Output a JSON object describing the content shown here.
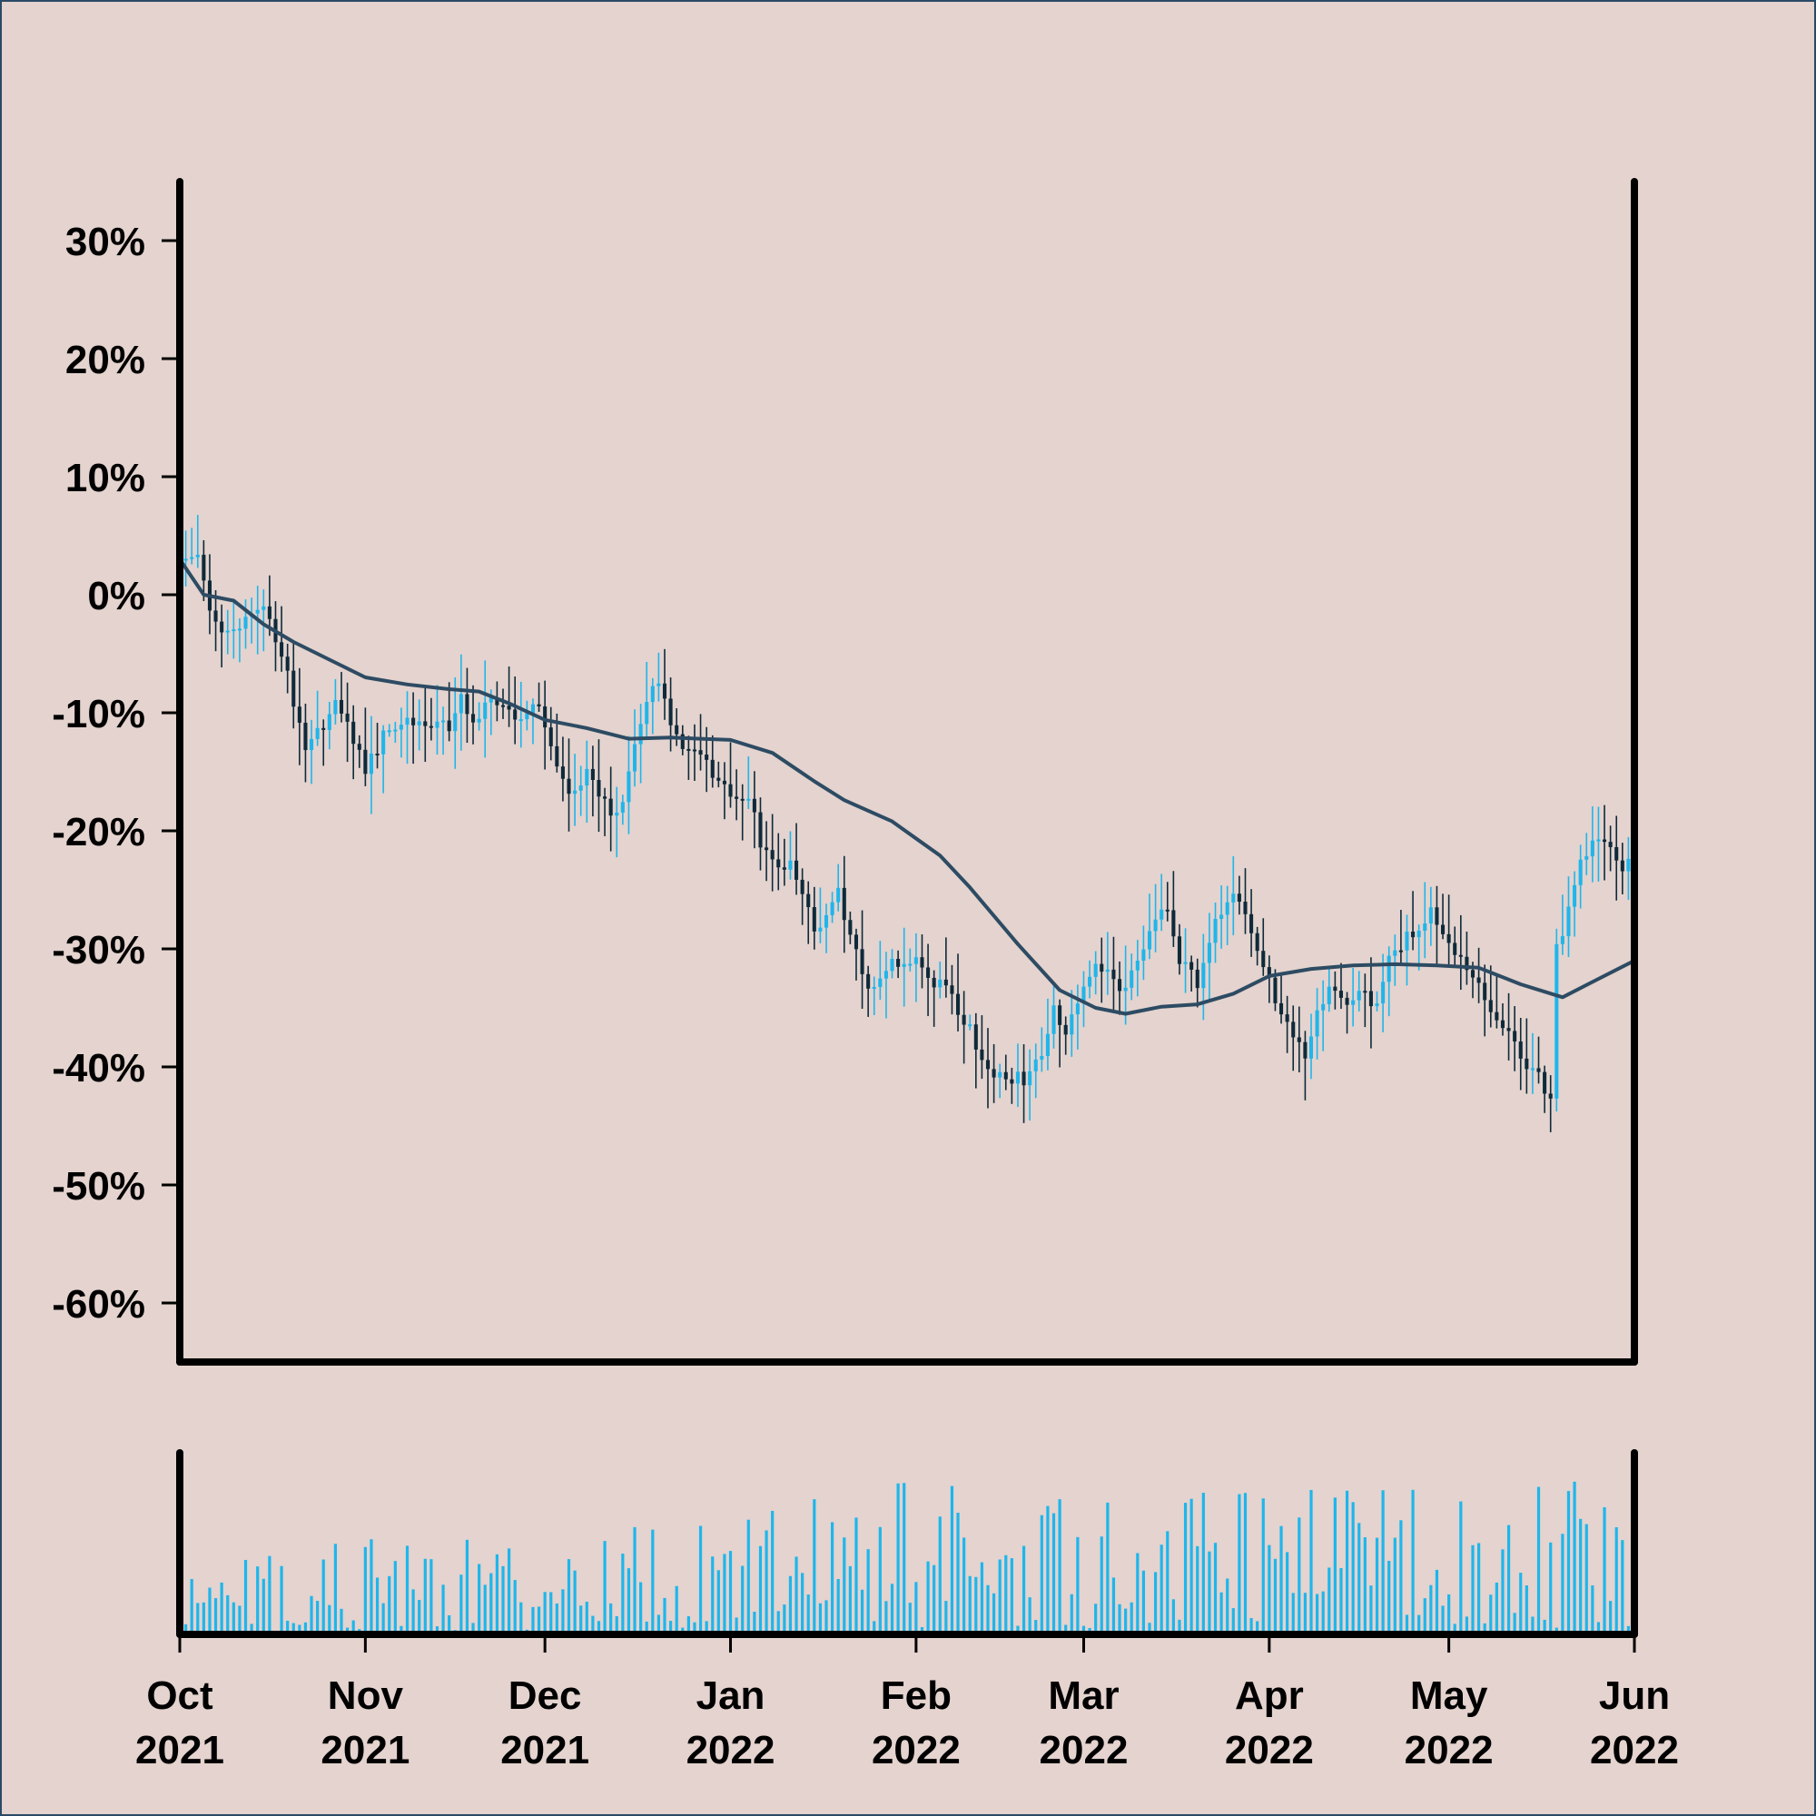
{
  "chart_data": {
    "type": "candlestick",
    "title": "",
    "xlabel": "",
    "ylabel": "",
    "y_unit": "%",
    "date_range": [
      "2021-10-01",
      "2022-06-01"
    ],
    "ylim": [
      -65,
      35
    ],
    "y_ticks": [
      {
        "value": 30,
        "label": "30%"
      },
      {
        "value": 20,
        "label": "20%"
      },
      {
        "value": 10,
        "label": "10%"
      },
      {
        "value": 0,
        "label": "0%"
      },
      {
        "value": -10,
        "label": "-10%"
      },
      {
        "value": -20,
        "label": "-20%"
      },
      {
        "value": -30,
        "label": "-30%"
      },
      {
        "value": -40,
        "label": "-40%"
      },
      {
        "value": -50,
        "label": "-50%"
      },
      {
        "value": -60,
        "label": "-60%"
      }
    ],
    "x_ticks": [
      {
        "date": "2021-10-01",
        "month": "Oct",
        "year": "2021"
      },
      {
        "date": "2021-11-01",
        "month": "Nov",
        "year": "2021"
      },
      {
        "date": "2021-12-01",
        "month": "Dec",
        "year": "2021"
      },
      {
        "date": "2022-01-01",
        "month": "Jan",
        "year": "2022"
      },
      {
        "date": "2022-02-01",
        "month": "Feb",
        "year": "2022"
      },
      {
        "date": "2022-03-01",
        "month": "Mar",
        "year": "2022"
      },
      {
        "date": "2022-04-01",
        "month": "Apr",
        "year": "2022"
      },
      {
        "date": "2022-05-01",
        "month": "May",
        "year": "2022"
      },
      {
        "date": "2022-06-01",
        "month": "Jun",
        "year": "2022"
      }
    ],
    "close_path": [
      [
        "2021-10-01",
        3
      ],
      [
        "2021-10-04",
        3
      ],
      [
        "2021-10-06",
        -1
      ],
      [
        "2021-10-08",
        -3
      ],
      [
        "2021-10-11",
        -3
      ],
      [
        "2021-10-13",
        -1
      ],
      [
        "2021-10-15",
        -1
      ],
      [
        "2021-10-18",
        -5
      ],
      [
        "2021-10-20",
        -9
      ],
      [
        "2021-10-22",
        -13
      ],
      [
        "2021-10-25",
        -11
      ],
      [
        "2021-10-27",
        -9
      ],
      [
        "2021-10-29",
        -11
      ],
      [
        "2021-11-01",
        -15
      ],
      [
        "2021-11-03",
        -13
      ],
      [
        "2021-11-05",
        -11
      ],
      [
        "2021-11-08",
        -11
      ],
      [
        "2021-11-10",
        -11
      ],
      [
        "2021-11-12",
        -11
      ],
      [
        "2021-11-15",
        -11
      ],
      [
        "2021-11-17",
        -9
      ],
      [
        "2021-11-19",
        -11
      ],
      [
        "2021-11-22",
        -9
      ],
      [
        "2021-11-24",
        -9
      ],
      [
        "2021-11-26",
        -11
      ],
      [
        "2021-11-29",
        -9
      ],
      [
        "2021-12-01",
        -11
      ],
      [
        "2021-12-03",
        -15
      ],
      [
        "2021-12-06",
        -17
      ],
      [
        "2021-12-08",
        -15
      ],
      [
        "2021-12-10",
        -17
      ],
      [
        "2021-12-13",
        -19
      ],
      [
        "2021-12-15",
        -15
      ],
      [
        "2021-12-17",
        -11
      ],
      [
        "2021-12-20",
        -7
      ],
      [
        "2021-12-22",
        -11
      ],
      [
        "2021-12-24",
        -13
      ],
      [
        "2021-12-27",
        -13
      ],
      [
        "2021-12-29",
        -15
      ],
      [
        "2022-01-01",
        -17
      ],
      [
        "2022-01-04",
        -17
      ],
      [
        "2022-01-06",
        -21
      ],
      [
        "2022-01-08",
        -23
      ],
      [
        "2022-01-11",
        -23
      ],
      [
        "2022-01-13",
        -25
      ],
      [
        "2022-01-15",
        -29
      ],
      [
        "2022-01-17",
        -27
      ],
      [
        "2022-01-19",
        -25
      ],
      [
        "2022-01-21",
        -29
      ],
      [
        "2022-01-24",
        -33
      ],
      [
        "2022-01-26",
        -33
      ],
      [
        "2022-01-28",
        -31
      ],
      [
        "2022-02-01",
        -31
      ],
      [
        "2022-02-03",
        -33
      ],
      [
        "2022-02-05",
        -33
      ],
      [
        "2022-02-08",
        -35
      ],
      [
        "2022-02-10",
        -37
      ],
      [
        "2022-02-12",
        -39
      ],
      [
        "2022-02-15",
        -41
      ],
      [
        "2022-02-17",
        -41
      ],
      [
        "2022-02-19",
        -41
      ],
      [
        "2022-02-22",
        -39
      ],
      [
        "2022-02-24",
        -35
      ],
      [
        "2022-02-26",
        -37
      ],
      [
        "2022-03-01",
        -33
      ],
      [
        "2022-03-03",
        -31
      ],
      [
        "2022-03-06",
        -33
      ],
      [
        "2022-03-08",
        -33
      ],
      [
        "2022-03-10",
        -31
      ],
      [
        "2022-03-13",
        -27
      ],
      [
        "2022-03-15",
        -27
      ],
      [
        "2022-03-17",
        -31
      ],
      [
        "2022-03-20",
        -33
      ],
      [
        "2022-03-22",
        -29
      ],
      [
        "2022-03-24",
        -27
      ],
      [
        "2022-03-26",
        -25
      ],
      [
        "2022-03-28",
        -27
      ],
      [
        "2022-03-31",
        -31
      ],
      [
        "2022-04-02",
        -35
      ],
      [
        "2022-04-05",
        -37
      ],
      [
        "2022-04-07",
        -39
      ],
      [
        "2022-04-09",
        -35
      ],
      [
        "2022-04-12",
        -33
      ],
      [
        "2022-04-14",
        -35
      ],
      [
        "2022-04-16",
        -33
      ],
      [
        "2022-04-19",
        -35
      ],
      [
        "2022-04-21",
        -31
      ],
      [
        "2022-04-24",
        -29
      ],
      [
        "2022-04-26",
        -29
      ],
      [
        "2022-04-28",
        -27
      ],
      [
        "2022-05-01",
        -29
      ],
      [
        "2022-05-03",
        -31
      ],
      [
        "2022-05-06",
        -33
      ],
      [
        "2022-05-08",
        -35
      ],
      [
        "2022-05-11",
        -37
      ],
      [
        "2022-05-13",
        -39
      ],
      [
        "2022-05-16",
        -41
      ],
      [
        "2022-05-18",
        -43
      ],
      [
        "2022-05-19",
        -30
      ],
      [
        "2022-05-21",
        -27
      ],
      [
        "2022-05-23",
        -23
      ],
      [
        "2022-05-25",
        -21
      ],
      [
        "2022-05-27",
        -21
      ],
      [
        "2022-05-30",
        -23
      ],
      [
        "2022-06-01",
        -21
      ]
    ],
    "moving_average": [
      [
        "2021-10-01",
        3
      ],
      [
        "2021-10-05",
        0
      ],
      [
        "2021-10-10",
        -0.5
      ],
      [
        "2021-10-15",
        -2.5
      ],
      [
        "2021-10-20",
        -4
      ],
      [
        "2021-10-26",
        -5.5
      ],
      [
        "2021-11-01",
        -7
      ],
      [
        "2021-11-08",
        -7.6
      ],
      [
        "2021-11-15",
        -8
      ],
      [
        "2021-11-20",
        -8.2
      ],
      [
        "2021-11-25",
        -9.2
      ],
      [
        "2021-12-01",
        -10.6
      ],
      [
        "2021-12-08",
        -11.3
      ],
      [
        "2021-12-15",
        -12.2
      ],
      [
        "2021-12-22",
        -12.1
      ],
      [
        "2022-01-01",
        -12.3
      ],
      [
        "2022-01-08",
        -13.4
      ],
      [
        "2022-01-15",
        -15.8
      ],
      [
        "2022-01-20",
        -17.4
      ],
      [
        "2022-01-28",
        -19.2
      ],
      [
        "2022-02-05",
        -22.1
      ],
      [
        "2022-02-10",
        -24.8
      ],
      [
        "2022-02-18",
        -29.6
      ],
      [
        "2022-02-25",
        -33.5
      ],
      [
        "2022-03-03",
        -35
      ],
      [
        "2022-03-08",
        -35.5
      ],
      [
        "2022-03-14",
        -34.9
      ],
      [
        "2022-03-20",
        -34.7
      ],
      [
        "2022-03-26",
        -33.8
      ],
      [
        "2022-04-01",
        -32.3
      ],
      [
        "2022-04-08",
        -31.7
      ],
      [
        "2022-04-15",
        -31.4
      ],
      [
        "2022-04-22",
        -31.3
      ],
      [
        "2022-04-29",
        -31.4
      ],
      [
        "2022-05-06",
        -31.6
      ],
      [
        "2022-05-13",
        -33
      ],
      [
        "2022-05-20",
        -34.1
      ],
      [
        "2022-05-25",
        -32.8
      ],
      [
        "2022-06-01",
        -31
      ]
    ],
    "volume_shape": [
      [
        "2021-10-01",
        0.32
      ],
      [
        "2021-11-01",
        0.44
      ],
      [
        "2021-12-01",
        0.43
      ],
      [
        "2022-01-01",
        0.55
      ],
      [
        "2022-02-01",
        0.7
      ],
      [
        "2022-03-01",
        0.62
      ],
      [
        "2022-04-01",
        0.66
      ],
      [
        "2022-05-01",
        0.66
      ],
      [
        "2022-05-20",
        0.8
      ],
      [
        "2022-06-01",
        0.52
      ]
    ],
    "colors": {
      "background": "#e4d3ce",
      "up_candle": "#1eb6ec",
      "down_candle": "#0e2a3a",
      "moving_average": "#2d4b63",
      "volume": "#1eb6ec",
      "axis": "#000000",
      "frame": "#2b4a66"
    },
    "grid": false
  }
}
